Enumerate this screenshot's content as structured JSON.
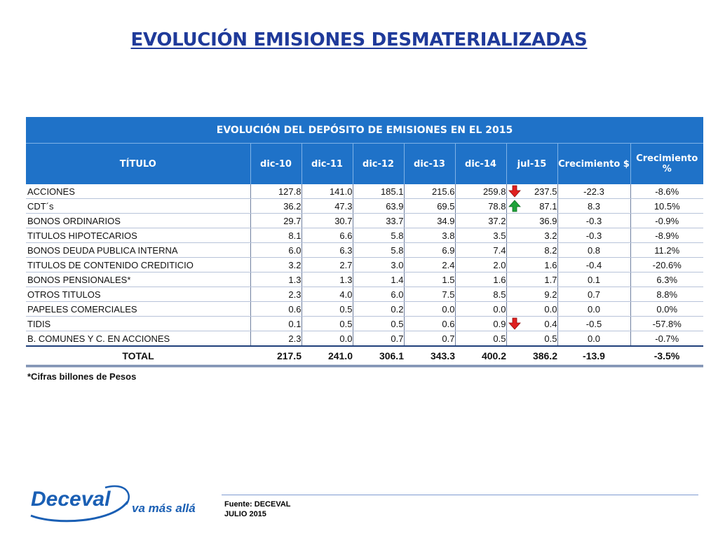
{
  "page_title": "EVOLUCIÓN EMISIONES DESMATERIALIZADAS",
  "table": {
    "band_title": "EVOLUCIÓN DEL DEPÓSITO DE EMISIONES EN EL 2015",
    "headers": [
      "TÍTULO",
      "dic-10",
      "dic-11",
      "dic-12",
      "dic-13",
      "dic-14",
      "jul-15",
      "Crecimiento $",
      "Crecimiento %"
    ],
    "rows": [
      {
        "title": "ACCIONES",
        "values": [
          "127.8",
          "141.0",
          "185.1",
          "215.6",
          "259.8",
          "237.5"
        ],
        "growth_abs": "-22.3",
        "growth_pct": "-8.6%",
        "arrow": "down"
      },
      {
        "title": "CDT´s",
        "values": [
          "36.2",
          "47.3",
          "63.9",
          "69.5",
          "78.8",
          "87.1"
        ],
        "growth_abs": "8.3",
        "growth_pct": "10.5%",
        "arrow": "up"
      },
      {
        "title": "BONOS ORDINARIOS",
        "values": [
          "29.7",
          "30.7",
          "33.7",
          "34.9",
          "37.2",
          "36.9"
        ],
        "growth_abs": "-0.3",
        "growth_pct": "-0.9%",
        "arrow": ""
      },
      {
        "title": "TITULOS HIPOTECARIOS",
        "values": [
          "8.1",
          "6.6",
          "5.8",
          "3.8",
          "3.5",
          "3.2"
        ],
        "growth_abs": "-0.3",
        "growth_pct": "-8.9%",
        "arrow": ""
      },
      {
        "title": "BONOS DEUDA PUBLICA INTERNA",
        "values": [
          "6.0",
          "6.3",
          "5.8",
          "6.9",
          "7.4",
          "8.2"
        ],
        "growth_abs": "0.8",
        "growth_pct": "11.2%",
        "arrow": ""
      },
      {
        "title": "TITULOS DE CONTENIDO CREDITICIO",
        "values": [
          "3.2",
          "2.7",
          "3.0",
          "2.4",
          "2.0",
          "1.6"
        ],
        "growth_abs": "-0.4",
        "growth_pct": "-20.6%",
        "arrow": ""
      },
      {
        "title": "BONOS PENSIONALES*",
        "values": [
          "1.3",
          "1.3",
          "1.4",
          "1.5",
          "1.6",
          "1.7"
        ],
        "growth_abs": "0.1",
        "growth_pct": "6.3%",
        "arrow": ""
      },
      {
        "title": "OTROS TITULOS",
        "values": [
          "2.3",
          "4.0",
          "6.0",
          "7.5",
          "8.5",
          "9.2"
        ],
        "growth_abs": "0.7",
        "growth_pct": "8.8%",
        "arrow": ""
      },
      {
        "title": "PAPELES COMERCIALES",
        "values": [
          "0.6",
          "0.5",
          "0.2",
          "0.0",
          "0.0",
          "0.0"
        ],
        "growth_abs": "0.0",
        "growth_pct": "0.0%",
        "arrow": ""
      },
      {
        "title": "TIDIS",
        "values": [
          "0.1",
          "0.5",
          "0.5",
          "0.6",
          "0.9",
          "0.4"
        ],
        "growth_abs": "-0.5",
        "growth_pct": "-57.8%",
        "arrow": "down"
      },
      {
        "title": "B. COMUNES Y C. EN ACCIONES",
        "values": [
          "2.3",
          "0.0",
          "0.7",
          "0.7",
          "0.5",
          "0.5"
        ],
        "growth_abs": "0.0",
        "growth_pct": "-0.7%",
        "arrow": ""
      }
    ],
    "total": {
      "label": "TOTAL",
      "values": [
        "217.5",
        "241.0",
        "306.1",
        "343.3",
        "400.2",
        "386.2"
      ],
      "growth_abs": "-13.9",
      "growth_pct": "-3.5%"
    }
  },
  "footnote": "*Cifras billones de Pesos",
  "logo": {
    "brand": "Deceval",
    "tagline": "va más allá"
  },
  "source": {
    "line1": "Fuente: DECEVAL",
    "line2": "JULIO 2015"
  },
  "colors": {
    "title": "#1f3a9a",
    "header_bg": "#1f72c8",
    "arrow_down": "#e02020",
    "arrow_up": "#1fa33a",
    "logo_blue": "#1a5fb4"
  }
}
